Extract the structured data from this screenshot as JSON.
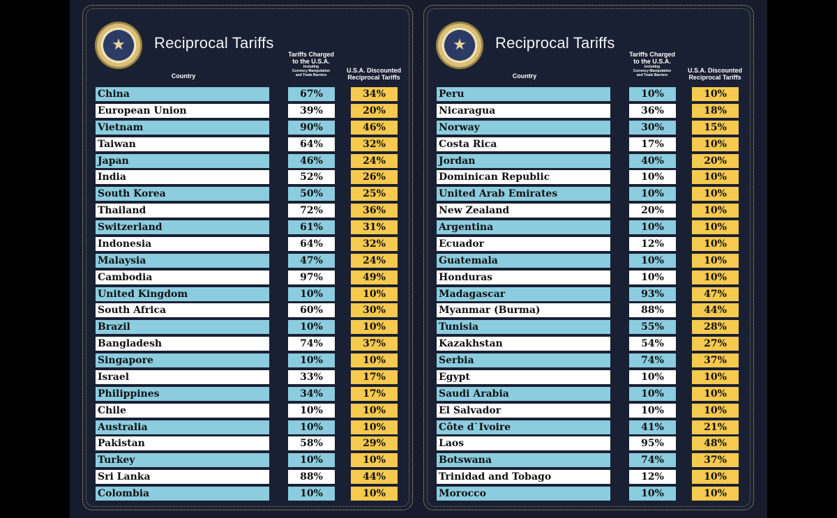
{
  "header": {
    "title": "Reciprocal Tariffs",
    "country_label": "Country",
    "charged_label_1": "Tariffs Charged",
    "charged_label_2": "to the U.S.A.",
    "charged_label_3": "Including",
    "charged_label_4": "Currency Manipulation",
    "charged_label_5": "and Trade Barriers",
    "discounted_label_1": "U.S.A. Discounted",
    "discounted_label_2": "Reciprocal Tariffs"
  },
  "seal_text": "SEAL OF THE PRESIDENT OF THE UNITED STATES",
  "colors": {
    "background": "#161c2c",
    "country_blue": "#8cccdf",
    "row_white": "#ffffff",
    "discounted_yellow": "#f6c94f",
    "border_gold": "#c9b46a"
  },
  "left_table": [
    {
      "country": "China",
      "charged": "67%",
      "discounted": "34%"
    },
    {
      "country": "European Union",
      "charged": "39%",
      "discounted": "20%"
    },
    {
      "country": "Vietnam",
      "charged": "90%",
      "discounted": "46%"
    },
    {
      "country": "Taiwan",
      "charged": "64%",
      "discounted": "32%"
    },
    {
      "country": "Japan",
      "charged": "46%",
      "discounted": "24%"
    },
    {
      "country": "India",
      "charged": "52%",
      "discounted": "26%"
    },
    {
      "country": "South Korea",
      "charged": "50%",
      "discounted": "25%"
    },
    {
      "country": "Thailand",
      "charged": "72%",
      "discounted": "36%"
    },
    {
      "country": "Switzerland",
      "charged": "61%",
      "discounted": "31%"
    },
    {
      "country": "Indonesia",
      "charged": "64%",
      "discounted": "32%"
    },
    {
      "country": "Malaysia",
      "charged": "47%",
      "discounted": "24%"
    },
    {
      "country": "Cambodia",
      "charged": "97%",
      "discounted": "49%"
    },
    {
      "country": "United Kingdom",
      "charged": "10%",
      "discounted": "10%"
    },
    {
      "country": "South Africa",
      "charged": "60%",
      "discounted": "30%"
    },
    {
      "country": "Brazil",
      "charged": "10%",
      "discounted": "10%"
    },
    {
      "country": "Bangladesh",
      "charged": "74%",
      "discounted": "37%"
    },
    {
      "country": "Singapore",
      "charged": "10%",
      "discounted": "10%"
    },
    {
      "country": "Israel",
      "charged": "33%",
      "discounted": "17%"
    },
    {
      "country": "Philippines",
      "charged": "34%",
      "discounted": "17%"
    },
    {
      "country": "Chile",
      "charged": "10%",
      "discounted": "10%"
    },
    {
      "country": "Australia",
      "charged": "10%",
      "discounted": "10%"
    },
    {
      "country": "Pakistan",
      "charged": "58%",
      "discounted": "29%"
    },
    {
      "country": "Turkey",
      "charged": "10%",
      "discounted": "10%"
    },
    {
      "country": "Sri Lanka",
      "charged": "88%",
      "discounted": "44%"
    },
    {
      "country": "Colombia",
      "charged": "10%",
      "discounted": "10%"
    }
  ],
  "right_table": [
    {
      "country": "Peru",
      "charged": "10%",
      "discounted": "10%"
    },
    {
      "country": "Nicaragua",
      "charged": "36%",
      "discounted": "18%"
    },
    {
      "country": "Norway",
      "charged": "30%",
      "discounted": "15%"
    },
    {
      "country": "Costa Rica",
      "charged": "17%",
      "discounted": "10%"
    },
    {
      "country": "Jordan",
      "charged": "40%",
      "discounted": "20%"
    },
    {
      "country": "Dominican Republic",
      "charged": "10%",
      "discounted": "10%"
    },
    {
      "country": "United Arab Emirates",
      "charged": "10%",
      "discounted": "10%"
    },
    {
      "country": "New Zealand",
      "charged": "20%",
      "discounted": "10%"
    },
    {
      "country": "Argentina",
      "charged": "10%",
      "discounted": "10%"
    },
    {
      "country": "Ecuador",
      "charged": "12%",
      "discounted": "10%"
    },
    {
      "country": "Guatemala",
      "charged": "10%",
      "discounted": "10%"
    },
    {
      "country": "Honduras",
      "charged": "10%",
      "discounted": "10%"
    },
    {
      "country": "Madagascar",
      "charged": "93%",
      "discounted": "47%"
    },
    {
      "country": "Myanmar (Burma)",
      "charged": "88%",
      "discounted": "44%"
    },
    {
      "country": "Tunisia",
      "charged": "55%",
      "discounted": "28%"
    },
    {
      "country": "Kazakhstan",
      "charged": "54%",
      "discounted": "27%"
    },
    {
      "country": "Serbia",
      "charged": "74%",
      "discounted": "37%"
    },
    {
      "country": "Egypt",
      "charged": "10%",
      "discounted": "10%"
    },
    {
      "country": "Saudi Arabia",
      "charged": "10%",
      "discounted": "10%"
    },
    {
      "country": "El Salvador",
      "charged": "10%",
      "discounted": "10%"
    },
    {
      "country": "Côte d`Ivoire",
      "charged": "41%",
      "discounted": "21%"
    },
    {
      "country": "Laos",
      "charged": "95%",
      "discounted": "48%"
    },
    {
      "country": "Botswana",
      "charged": "74%",
      "discounted": "37%"
    },
    {
      "country": "Trinidad and Tobago",
      "charged": "12%",
      "discounted": "10%"
    },
    {
      "country": "Morocco",
      "charged": "10%",
      "discounted": "10%"
    }
  ]
}
